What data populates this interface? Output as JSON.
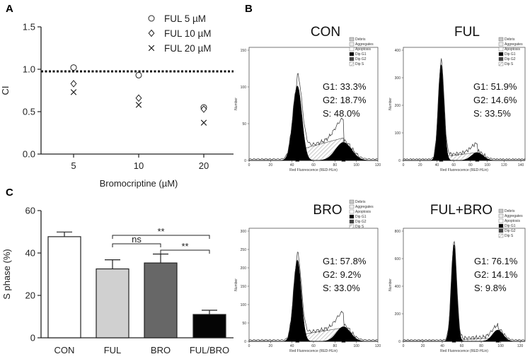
{
  "panel_labels": {
    "a": "A",
    "b": "B",
    "c": "C"
  },
  "chart_data": [
    {
      "panel": "A",
      "type": "scatter",
      "xlabel": "Bromocriptine (µM)",
      "ylabel": "CI",
      "x_categories": [
        "5",
        "10",
        "20"
      ],
      "y_ticks": [
        "0.0",
        "0.5",
        "1.0",
        "1.5"
      ],
      "ylim": [
        0.0,
        1.5
      ],
      "reference_line": 1.0,
      "legend_position": "top-right",
      "series": [
        {
          "name": "FUL 5 µM",
          "marker": "circle",
          "values": [
            1.02,
            0.93,
            0.55
          ]
        },
        {
          "name": "FUL 10 µM",
          "marker": "diamond",
          "values": [
            0.83,
            0.66,
            0.53
          ]
        },
        {
          "name": "FUL 20 µM",
          "marker": "x",
          "values": [
            0.73,
            0.58,
            0.37
          ]
        }
      ]
    },
    {
      "panel": "C",
      "type": "bar",
      "ylabel": "S phase (%)",
      "categories": [
        "CON",
        "FUL",
        "BRO",
        "FUL/BRO"
      ],
      "values": [
        47.7,
        32.5,
        35.3,
        11.0
      ],
      "errors": [
        2.2,
        4.3,
        4.2,
        2.0
      ],
      "colors": [
        "#ffffff",
        "#d0d0d0",
        "#676767",
        "#050505"
      ],
      "y_ticks": [
        "0",
        "20",
        "40",
        "60"
      ],
      "ylim": [
        0,
        60
      ],
      "significance": [
        {
          "from": "FUL",
          "to": "BRO",
          "label": "ns"
        },
        {
          "from": "BRO",
          "to": "FUL/BRO",
          "label": "**"
        },
        {
          "from": "FUL",
          "to": "FUL/BRO",
          "label": "**"
        }
      ]
    },
    {
      "panel": "B",
      "type": "area",
      "plots": [
        {
          "title": "CON",
          "g1": "G1: 33.3%",
          "g2": "G2: 18.7%",
          "s": "S:    48.0%",
          "y_ticks": [
            "0",
            "50",
            "100",
            "150"
          ],
          "x_ticks": [
            "0",
            "20",
            "40",
            "60",
            "80",
            "100",
            "120"
          ],
          "g1_peak": 45,
          "g2_peak": 88,
          "xmax": 120
        },
        {
          "title": "FUL",
          "g1": "G1: 51.9%",
          "g2": "G2: 14.6%",
          "s": "S:    33.5%",
          "y_ticks": [
            "0",
            "100",
            "200",
            "300",
            "400"
          ],
          "x_ticks": [
            "0",
            "20",
            "40",
            "60",
            "80",
            "100",
            "120",
            "140"
          ],
          "g1_peak": 45,
          "g2_peak": 88,
          "xmax": 145
        },
        {
          "title": "BRO",
          "g1": "G1: 57.8%",
          "g2": "G2: 9.2%",
          "s": "S:    33.0%",
          "y_ticks": [
            "0",
            "50",
            "100",
            "150",
            "200",
            "250",
            "300"
          ],
          "x_ticks": [
            "0",
            "20",
            "40",
            "60",
            "80",
            "100",
            "120"
          ],
          "g1_peak": 45,
          "g2_peak": 88,
          "xmax": 120
        },
        {
          "title": "FUL+BRO",
          "g1": "G1: 76.1%",
          "g2": "G2: 14.1%",
          "s": "S:    9.8%",
          "y_ticks": [
            "0",
            "200",
            "400",
            "600",
            "800"
          ],
          "x_ticks": [
            "0",
            "20",
            "40",
            "60",
            "80",
            "100",
            "120"
          ],
          "g1_peak": 52,
          "g2_peak": 97,
          "xmax": 125
        }
      ],
      "mini_legend": [
        "Debris",
        "Aggregates",
        "Apoptosis",
        "Dip G1",
        "Dip G2",
        "Dip S"
      ],
      "xlabel": "Red Fluorescence (RED-HLin)",
      "ylabel": "Number"
    }
  ]
}
